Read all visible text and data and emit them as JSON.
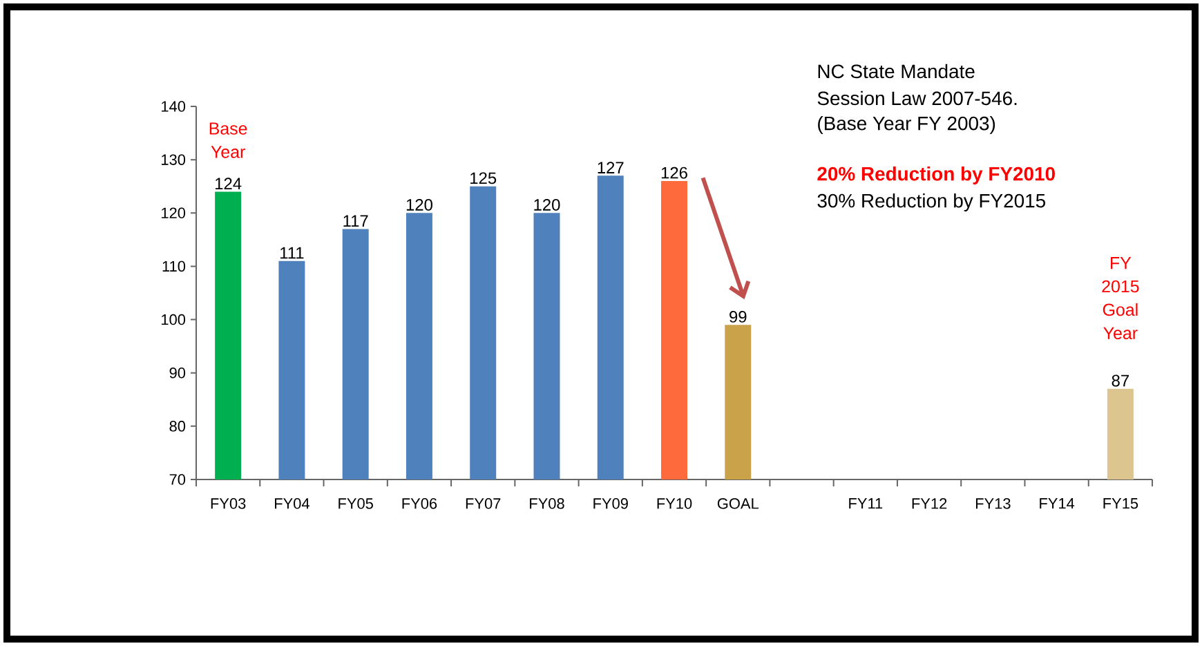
{
  "chart_data": {
    "type": "bar",
    "categories": [
      "FY03",
      "FY04",
      "FY05",
      "FY06",
      "FY07",
      "FY08",
      "FY09",
      "FY10",
      "GOAL",
      null,
      "FY11",
      "FY12",
      "FY13",
      "FY14",
      "FY15"
    ],
    "values": [
      124,
      111,
      117,
      120,
      125,
      120,
      127,
      126,
      99,
      null,
      null,
      null,
      null,
      null,
      87
    ],
    "colors": [
      "#00b050",
      "#4f81bd",
      "#4f81bd",
      "#4f81bd",
      "#4f81bd",
      "#4f81bd",
      "#4f81bd",
      "#ff6a3d",
      "#c9a24a",
      "#4f81bd",
      "#4f81bd",
      "#4f81bd",
      "#4f81bd",
      "#4f81bd",
      "#dcc58f"
    ],
    "data_labels": true,
    "ylim": [
      70,
      140
    ],
    "yticks": [
      70,
      80,
      90,
      100,
      110,
      120,
      130,
      140
    ],
    "annotations": [
      "Base Year",
      "FY 2015 Goal Year",
      "NC State Mandate",
      "Session Law 2007-546.",
      "(Base Year  FY 2003)",
      "20% Reduction by FY2010",
      "30% Reduction by FY2015"
    ]
  }
}
